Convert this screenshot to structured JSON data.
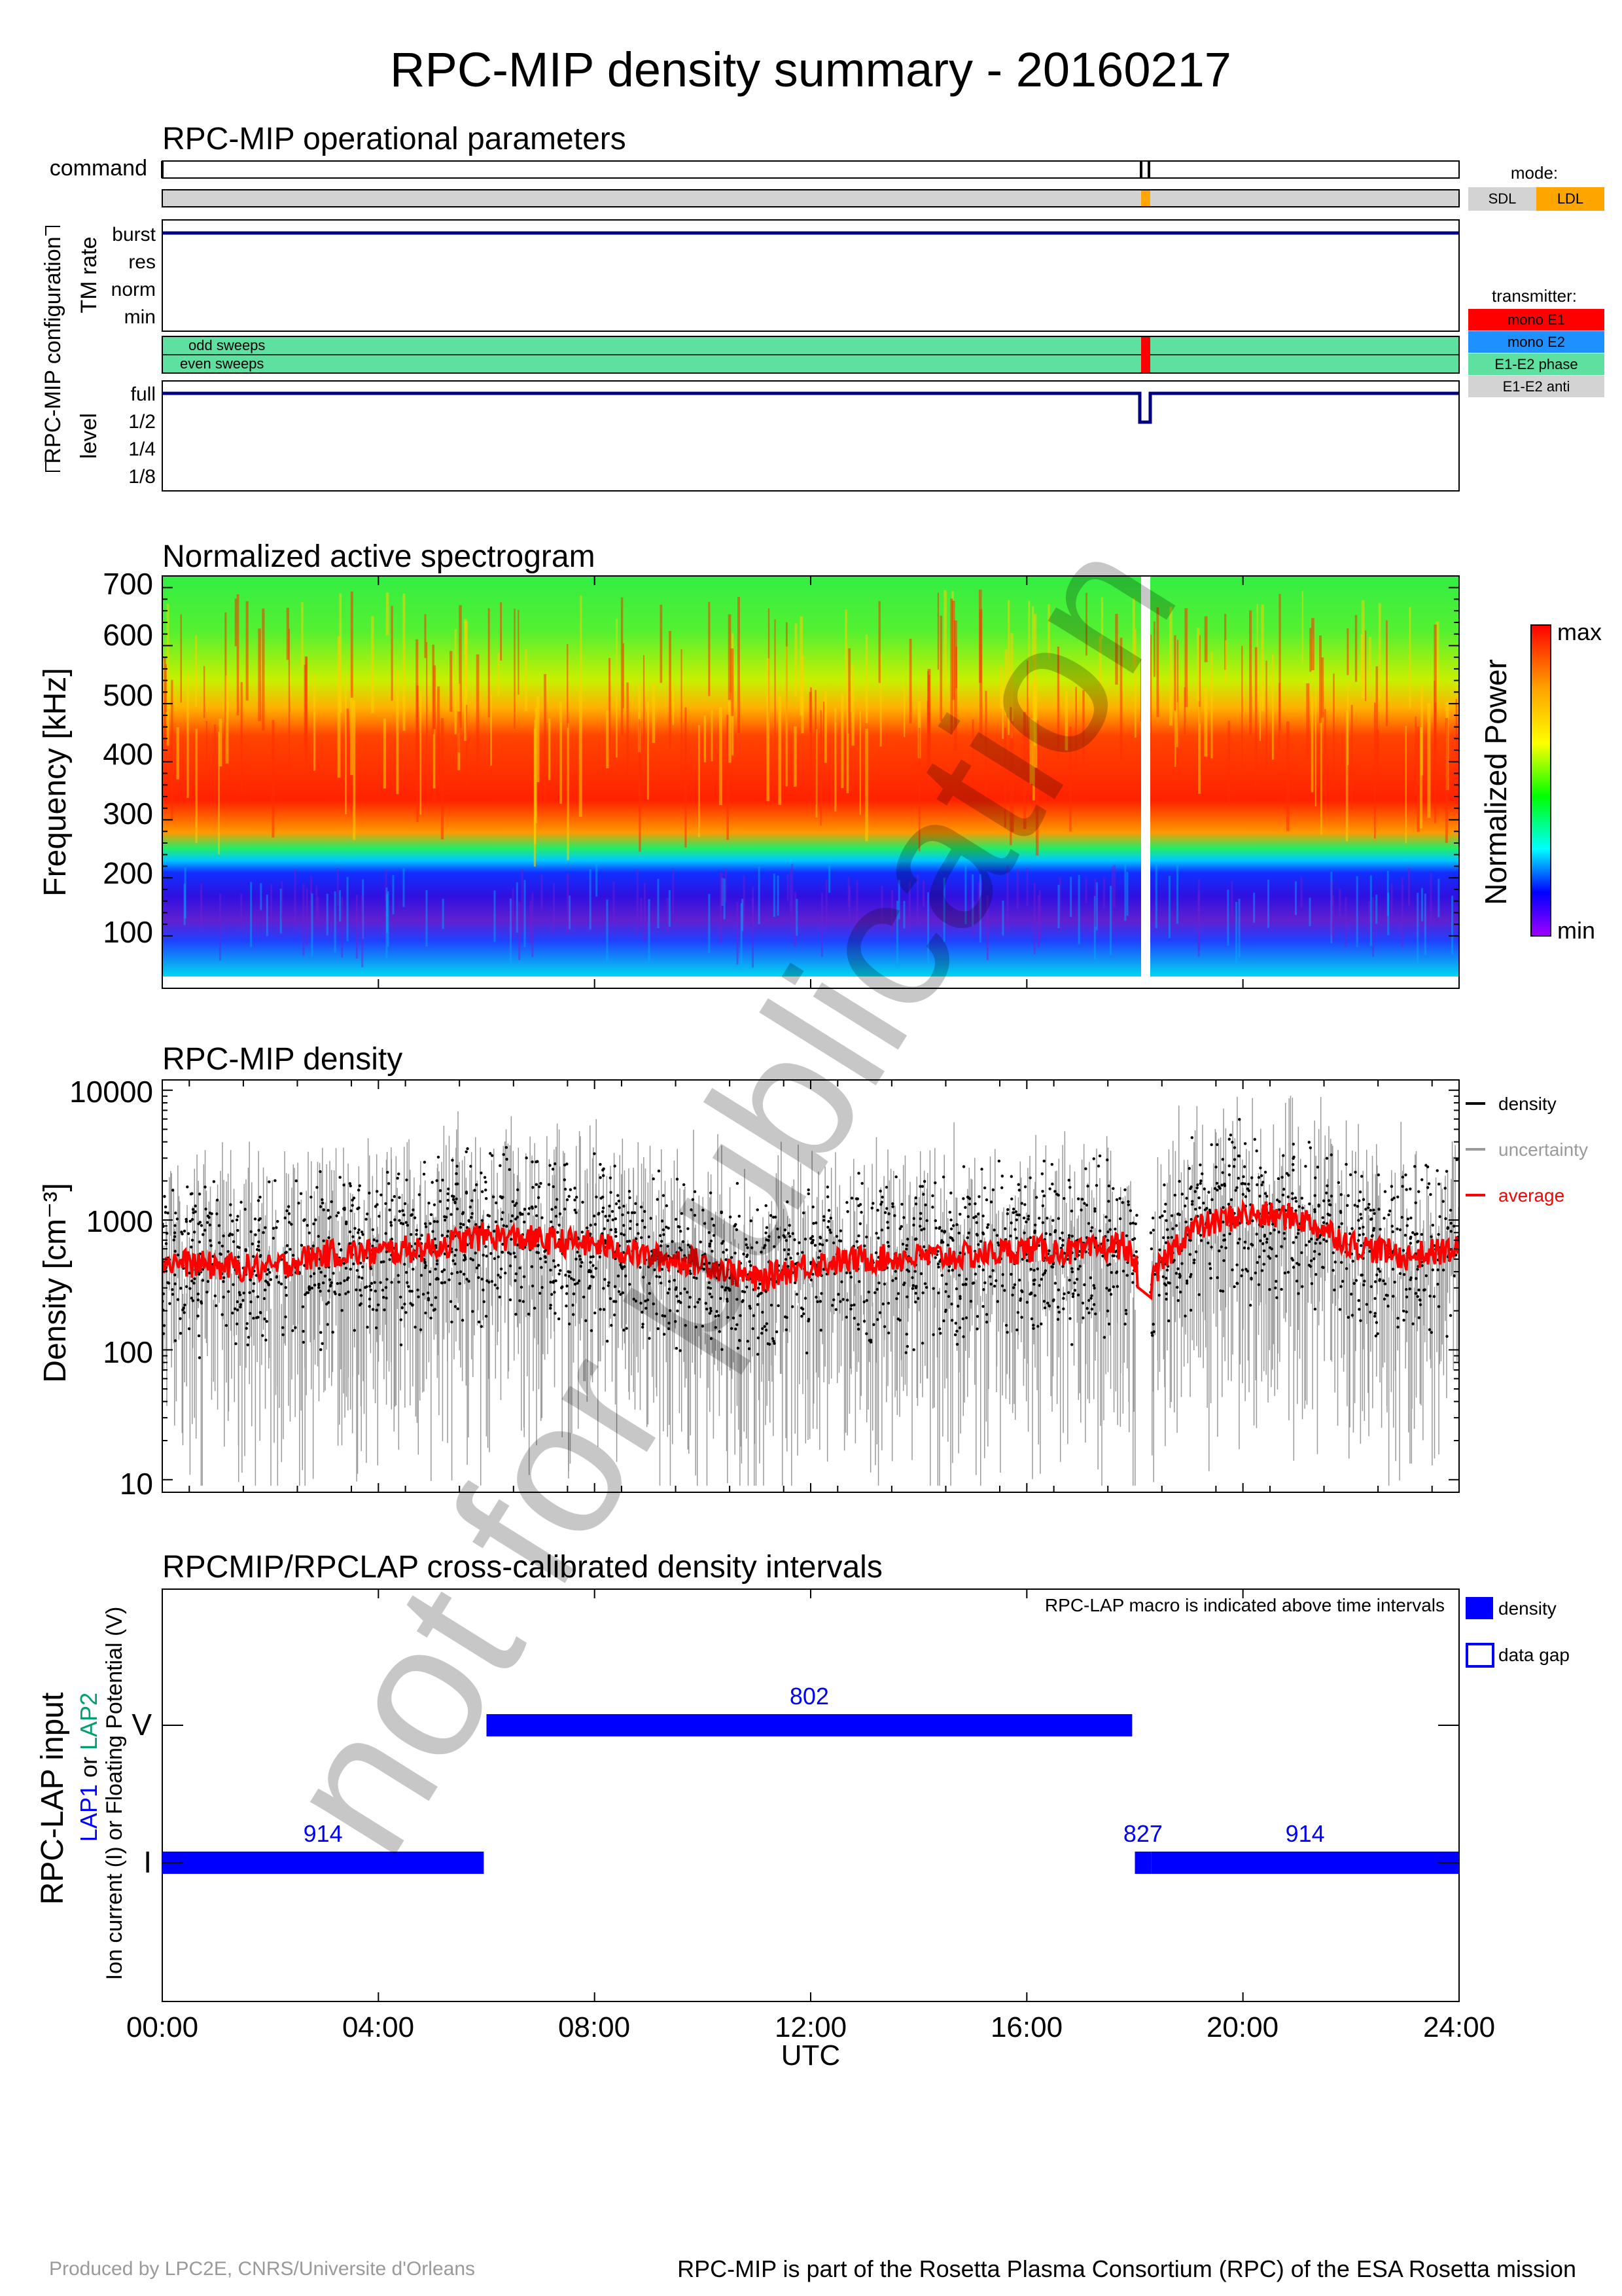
{
  "title": "RPC-MIP density summary - 20160217",
  "watermark": "not for publication",
  "footer": {
    "left": "Produced by LPC2E, CNRS/Universite d'Orleans",
    "right": "RPC-MIP is part of the Rosetta Plasma Consortium (RPC) of the ESA Rosetta mission"
  },
  "panel1": {
    "title": "RPC-MIP operational parameters",
    "command_label": "command",
    "config_label": "RPC-MIP configuration",
    "tm_rate_label": "TM rate",
    "tm_levels": [
      "burst",
      "res",
      "norm",
      "min"
    ],
    "sweeps": [
      "odd sweeps",
      "even sweeps"
    ],
    "level_label": "level",
    "levels": [
      "full",
      "1/2",
      "1/4",
      "1/8"
    ],
    "mode_title": "mode:",
    "modes": [
      {
        "label": "SDL",
        "color": "#d3d3d3"
      },
      {
        "label": "LDL",
        "color": "#ffa500"
      }
    ],
    "transmitter_title": "transmitter:",
    "transmitters": [
      {
        "label": "mono E1",
        "color": "#ff0000"
      },
      {
        "label": "mono E2",
        "color": "#1e90ff"
      },
      {
        "label": "E1-E2 phase",
        "color": "#5ee0a0"
      },
      {
        "label": "E1-E2 anti",
        "color": "#d3d3d3"
      }
    ]
  },
  "panel2": {
    "title": "Normalized active spectrogram",
    "ylabel": "Frequency [kHz]",
    "yticks": [
      "700",
      "600",
      "500",
      "400",
      "300",
      "200",
      "100"
    ],
    "colorbar_label": "Normalized Power",
    "colorbar_max": "max",
    "colorbar_min": "min"
  },
  "panel3": {
    "title": "RPC-MIP density",
    "ylabel": "Density [cm⁻³]",
    "yticks": [
      "10000",
      "1000",
      "100",
      "10"
    ],
    "legend": [
      {
        "label": "density",
        "color": "#000000"
      },
      {
        "label": "uncertainty",
        "color": "#9a9a9a"
      },
      {
        "label": "average",
        "color": "#ff0000"
      }
    ]
  },
  "panel4": {
    "title": "RPCMIP/RPCLAP cross-calibrated density intervals",
    "note": "RPC-LAP macro is indicated above time intervals",
    "ylabel_main": "RPC-LAP input",
    "ylabel_lap1": "LAP1",
    "ylabel_or": " or ",
    "ylabel_lap2": "LAP2",
    "ylabel_sub": "Ion current (I) or Floating Potential (V)",
    "yticks": [
      "V",
      "I"
    ],
    "legend": [
      {
        "label": "density",
        "color": "#0000ff"
      },
      {
        "label": "data gap",
        "color": "#0000ff"
      }
    ],
    "xticks": [
      "00:00",
      "04:00",
      "08:00",
      "12:00",
      "16:00",
      "20:00",
      "24:00"
    ],
    "xlabel": "UTC"
  },
  "chart_data": [
    {
      "type": "line",
      "title": "RPC-MIP operational parameters",
      "xlim": [
        0,
        24
      ],
      "series": [
        {
          "name": "level",
          "x": [
            0,
            18.05,
            18.05,
            18.3,
            18.3,
            24
          ],
          "values": [
            "full",
            "full",
            "1/2",
            "1/2",
            "full",
            "full"
          ]
        },
        {
          "name": "TM rate",
          "x": [
            0,
            24
          ],
          "values": [
            "burst",
            "burst"
          ]
        }
      ],
      "events": [
        {
          "name": "command",
          "x": [
            0,
            18.05,
            18.3
          ]
        },
        {
          "name": "LDL",
          "x": [
            18.05,
            18.3
          ]
        },
        {
          "name": "mono E1",
          "x": [
            18.05,
            18.3
          ]
        }
      ]
    },
    {
      "type": "heatmap",
      "title": "Normalized active spectrogram",
      "ylabel": "Frequency [kHz]",
      "xlim": [
        0,
        24
      ],
      "ylim": [
        30,
        720
      ],
      "data_gap_x": [
        18.05,
        18.3
      ],
      "max_power_band_kHz": [
        220,
        400
      ],
      "min_power_band_kHz": [
        90,
        180
      ]
    },
    {
      "type": "scatter",
      "title": "RPC-MIP density",
      "ylabel": "Density [cm⁻³]",
      "yscale": "log",
      "xlim": [
        0,
        24
      ],
      "ylim": [
        8,
        12000
      ],
      "series": [
        {
          "name": "average",
          "x": [
            0,
            1,
            2,
            3,
            4,
            5,
            6,
            7,
            8,
            9,
            10,
            11,
            12,
            13,
            14,
            15,
            16,
            17,
            17.8,
            18.2,
            19,
            20,
            21,
            22,
            23,
            24
          ],
          "values": [
            480,
            440,
            420,
            550,
            560,
            620,
            760,
            700,
            650,
            520,
            470,
            340,
            460,
            500,
            520,
            530,
            600,
            560,
            650,
            230,
            820,
            1100,
            1050,
            650,
            520,
            600
          ]
        }
      ],
      "scatter_range": [
        100,
        4000
      ]
    },
    {
      "type": "bar",
      "title": "RPCMIP/RPCLAP cross-calibrated density intervals",
      "xlabel": "UTC",
      "xlim": [
        0,
        24
      ],
      "intervals": [
        {
          "row": "I",
          "start": 0.0,
          "end": 5.95,
          "macro": "914"
        },
        {
          "row": "V",
          "start": 6.0,
          "end": 17.95,
          "macro": "802"
        },
        {
          "row": "I",
          "start": 18.0,
          "end": 18.3,
          "macro": "827"
        },
        {
          "row": "I",
          "start": 18.3,
          "end": 24.0,
          "macro": "914"
        }
      ]
    }
  ]
}
